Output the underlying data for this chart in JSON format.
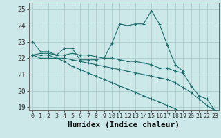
{
  "xlabel": "Humidex (Indice chaleur)",
  "xlim": [
    -0.5,
    23.5
  ],
  "ylim": [
    18.8,
    25.4
  ],
  "yticks": [
    19,
    20,
    21,
    22,
    23,
    24,
    25
  ],
  "xticks": [
    0,
    1,
    2,
    3,
    4,
    5,
    6,
    7,
    8,
    9,
    10,
    11,
    12,
    13,
    14,
    15,
    16,
    17,
    18,
    19,
    20,
    21,
    22,
    23
  ],
  "bg_color": "#cce8e8",
  "grid_color": "#aacccc",
  "line_color": "#1a6b6b",
  "lines": [
    {
      "x": [
        0,
        1,
        2,
        3,
        4,
        5,
        6,
        7,
        8,
        9,
        10,
        11,
        12,
        13,
        14,
        15,
        16,
        17,
        18,
        19
      ],
      "y": [
        23.0,
        22.4,
        22.4,
        22.2,
        22.6,
        22.6,
        21.9,
        21.9,
        21.9,
        22.0,
        22.9,
        24.1,
        24.0,
        24.1,
        24.1,
        24.9,
        24.1,
        22.8,
        21.6,
        21.2
      ]
    },
    {
      "x": [
        0,
        1,
        2,
        3,
        4,
        5,
        6,
        7,
        8,
        9,
        10,
        11,
        12,
        13,
        14,
        15,
        16,
        17,
        18,
        19,
        20,
        21,
        22,
        23
      ],
      "y": [
        22.2,
        22.3,
        22.3,
        22.2,
        22.2,
        22.3,
        22.2,
        22.2,
        22.1,
        22.0,
        22.0,
        21.9,
        21.8,
        21.8,
        21.7,
        21.6,
        21.4,
        21.4,
        21.2,
        21.1,
        20.3,
        19.7,
        19.5,
        18.8
      ]
    },
    {
      "x": [
        0,
        1,
        2,
        3,
        4,
        5,
        6,
        7,
        8,
        9,
        10,
        11,
        12,
        13,
        14,
        15,
        16,
        17,
        18,
        19,
        20,
        21,
        22,
        23
      ],
      "y": [
        22.2,
        22.2,
        22.2,
        22.0,
        22.0,
        21.9,
        21.8,
        21.7,
        21.6,
        21.5,
        21.4,
        21.3,
        21.2,
        21.1,
        21.0,
        20.9,
        20.8,
        20.7,
        20.5,
        20.2,
        19.9,
        19.5,
        19.1,
        18.8
      ]
    },
    {
      "x": [
        0,
        1,
        2,
        3,
        4,
        5,
        6,
        7,
        8,
        9,
        10,
        11,
        12,
        13,
        14,
        15,
        16,
        17,
        18
      ],
      "y": [
        22.2,
        22.0,
        22.0,
        22.0,
        21.8,
        21.5,
        21.3,
        21.1,
        20.9,
        20.7,
        20.5,
        20.3,
        20.1,
        19.9,
        19.7,
        19.5,
        19.3,
        19.1,
        18.9
      ]
    }
  ],
  "fontsize": 7
}
